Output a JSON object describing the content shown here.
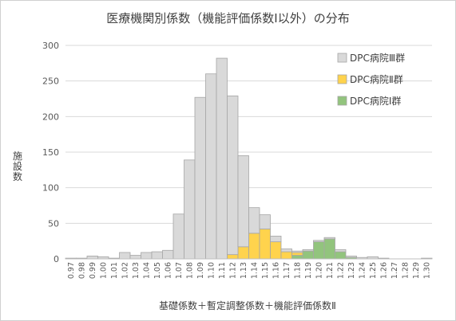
{
  "chart_data": {
    "type": "bar",
    "stacked": true,
    "title": "医療機関別係数（機能評価係数Ⅰ以外）の分布",
    "xlabel": "基礎係数＋暫定調整係数＋機能評価係数Ⅱ",
    "ylabel": "施設数",
    "ylim": [
      0,
      300
    ],
    "yticks": [
      "0",
      "50",
      "100",
      "150",
      "200",
      "250",
      "300"
    ],
    "grid": true,
    "legend_position": "right",
    "categories": [
      "0.97",
      "0.98",
      "0.99",
      "1.00",
      "1.01",
      "1.02",
      "1.03",
      "1.04",
      "1.05",
      "1.06",
      "1.07",
      "1.08",
      "1.09",
      "1.10",
      "1.11",
      "1.12",
      "1.13",
      "1.14",
      "1.15",
      "1.16",
      "1.17",
      "1.18",
      "1.19",
      "1.20",
      "1.21",
      "1.22",
      "1.23",
      "1.24",
      "1.25",
      "1.26",
      "1.27",
      "1.28",
      "1.29",
      "1.30"
    ],
    "series": [
      {
        "name": "DPC病院Ⅰ群",
        "color": "#92c47d",
        "values": [
          0,
          0,
          0,
          0,
          0,
          0,
          0,
          0,
          0,
          0,
          0,
          0,
          0,
          0,
          0,
          0,
          0,
          0,
          0,
          0,
          0,
          5,
          11,
          24,
          28,
          10,
          2,
          0,
          0,
          0,
          0,
          0,
          0,
          0
        ]
      },
      {
        "name": "DPC病院Ⅱ群",
        "color": "#ffd34d",
        "values": [
          0,
          0,
          0,
          0,
          0,
          0,
          0,
          0,
          0,
          0,
          0,
          0,
          0,
          0,
          0,
          6,
          17,
          36,
          42,
          24,
          10,
          4,
          0,
          0,
          0,
          0,
          0,
          0,
          0,
          0,
          0,
          0,
          0,
          0
        ]
      },
      {
        "name": "DPC病院Ⅲ群",
        "color": "#d9d9d9",
        "values": [
          1,
          1,
          4,
          3,
          1,
          9,
          5,
          9,
          10,
          12,
          63,
          139,
          227,
          260,
          282,
          223,
          128,
          36,
          20,
          8,
          4,
          2,
          2,
          2,
          2,
          3,
          2,
          2,
          3,
          1,
          0,
          0,
          0,
          1
        ]
      }
    ],
    "legend_order": [
      "DPC病院Ⅲ群",
      "DPC病院Ⅱ群",
      "DPC病院Ⅰ群"
    ]
  }
}
